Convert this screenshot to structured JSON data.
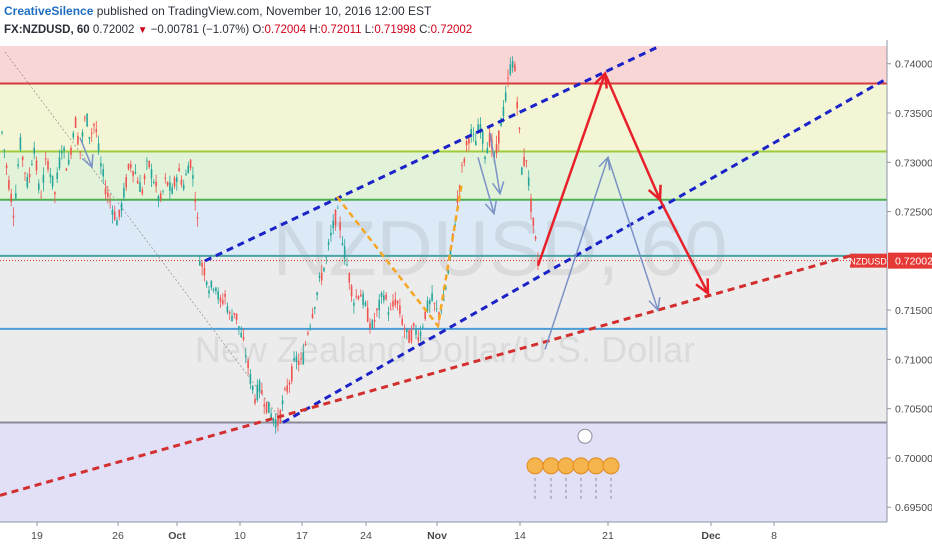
{
  "header": {
    "author": "CreativeSilence",
    "published_text": "published on TradingView.com, November 10, 2016 12:00 EST",
    "symbol": "FX:NZDUSD, 60",
    "last": "0.72002",
    "change": "−0.00781 (−1.07%)",
    "o_label": "O:",
    "o_value": "0.72004",
    "h_label": "H:",
    "h_value": "0.72011",
    "l_label": "L:",
    "l_value": "0.71998",
    "c_label": "C:",
    "c_value": "0.72002"
  },
  "watermark": {
    "symbol": "NZDUSD, 60",
    "name": "New Zealand Dollar/U.S. Dollar"
  },
  "price_tag": {
    "label": "NZDUSD",
    "value": "0.72002"
  },
  "colors": {
    "up": "#26a69a",
    "down": "#ef5350",
    "zone_red": "#f9d6d6",
    "zone_yellow": "#f3f5d4",
    "zone_green": "#e3f3d9",
    "zone_blue": "#dceaf7",
    "zone_grey": "#ececec",
    "zone_purple": "#e1e0f7",
    "line_red": "#d33a3a",
    "line_lime": "#9ccc3c",
    "line_green": "#4caf50",
    "line_teal": "#4aa3a3",
    "line_blue": "#4a9dd6",
    "line_grey": "#8a8a9a",
    "channel_blue": "#1a22c8",
    "trend_red": "#d32f2f",
    "fib_orange": "#f5a623",
    "proj_red": "#e8202a",
    "proj_steel": "#7b93c6"
  },
  "chart_data": {
    "type": "candlestick",
    "title": "",
    "xlabel": "",
    "ylabel": "",
    "ylim": [
      0.6935,
      0.7418
    ],
    "y_ticks": [
      "0.74000",
      "0.73500",
      "0.73000",
      "0.72500",
      "0.72000",
      "0.71500",
      "0.71000",
      "0.70500",
      "0.70000",
      "0.69500"
    ],
    "x_ticks": [
      "19",
      "26",
      "Oct",
      "10",
      "17",
      "24",
      "Nov",
      "14",
      "21",
      "Dec",
      "8"
    ],
    "last_price": 0.72002,
    "horizontal_levels": [
      0.738,
      0.7311,
      0.7262,
      0.7205,
      0.7131,
      0.7036
    ],
    "price_path": [
      [
        0,
        0.7345
      ],
      [
        8,
        0.7285
      ],
      [
        14,
        0.7248
      ],
      [
        20,
        0.732
      ],
      [
        28,
        0.7275
      ],
      [
        34,
        0.7318
      ],
      [
        40,
        0.7262
      ],
      [
        47,
        0.7305
      ],
      [
        55,
        0.7268
      ],
      [
        62,
        0.7318
      ],
      [
        68,
        0.7292
      ],
      [
        75,
        0.7345
      ],
      [
        80,
        0.731
      ],
      [
        86,
        0.735
      ],
      [
        90,
        0.7325
      ],
      [
        95,
        0.7342
      ],
      [
        100,
        0.73
      ],
      [
        106,
        0.7272
      ],
      [
        112,
        0.7255
      ],
      [
        118,
        0.7238
      ],
      [
        124,
        0.7268
      ],
      [
        130,
        0.73
      ],
      [
        136,
        0.7288
      ],
      [
        142,
        0.727
      ],
      [
        148,
        0.73
      ],
      [
        154,
        0.7282
      ],
      [
        160,
        0.7258
      ],
      [
        166,
        0.7282
      ],
      [
        172,
        0.7268
      ],
      [
        178,
        0.7292
      ],
      [
        184,
        0.7276
      ],
      [
        190,
        0.7305
      ],
      [
        196,
        0.7262
      ],
      [
        200,
        0.72
      ],
      [
        205,
        0.719
      ],
      [
        210,
        0.717
      ],
      [
        215,
        0.718
      ],
      [
        220,
        0.7155
      ],
      [
        225,
        0.7165
      ],
      [
        230,
        0.7142
      ],
      [
        235,
        0.715
      ],
      [
        240,
        0.7128
      ],
      [
        245,
        0.711
      ],
      [
        250,
        0.7082
      ],
      [
        255,
        0.7062
      ],
      [
        260,
        0.7072
      ],
      [
        266,
        0.7055
      ],
      [
        272,
        0.7042
      ],
      [
        278,
        0.7036
      ],
      [
        284,
        0.706
      ],
      [
        290,
        0.708
      ],
      [
        296,
        0.71
      ],
      [
        302,
        0.7095
      ],
      [
        308,
        0.713
      ],
      [
        314,
        0.7155
      ],
      [
        320,
        0.718
      ],
      [
        326,
        0.72
      ],
      [
        332,
        0.723
      ],
      [
        337,
        0.725
      ],
      [
        342,
        0.7225
      ],
      [
        348,
        0.719
      ],
      [
        354,
        0.716
      ],
      [
        360,
        0.717
      ],
      [
        366,
        0.715
      ],
      [
        372,
        0.7132
      ],
      [
        378,
        0.715
      ],
      [
        384,
        0.7168
      ],
      [
        390,
        0.7145
      ],
      [
        396,
        0.7162
      ],
      [
        402,
        0.714
      ],
      [
        408,
        0.712
      ],
      [
        414,
        0.713
      ],
      [
        420,
        0.7125
      ],
      [
        426,
        0.715
      ],
      [
        432,
        0.716
      ],
      [
        438,
        0.7145
      ],
      [
        444,
        0.716
      ],
      [
        450,
        0.72
      ],
      [
        455,
        0.724
      ],
      [
        460,
        0.728
      ],
      [
        465,
        0.7308
      ],
      [
        470,
        0.7332
      ],
      [
        475,
        0.7318
      ],
      [
        480,
        0.734
      ],
      [
        485,
        0.731
      ],
      [
        490,
        0.7325
      ],
      [
        495,
        0.73
      ],
      [
        500,
        0.7335
      ],
      [
        505,
        0.736
      ],
      [
        510,
        0.7395
      ],
      [
        514,
        0.7405
      ],
      [
        518,
        0.7352
      ],
      [
        522,
        0.729
      ],
      [
        526,
        0.731
      ],
      [
        530,
        0.7265
      ],
      [
        534,
        0.723
      ],
      [
        538,
        0.72
      ]
    ],
    "channel_upper": [
      [
        205,
        0.72
      ],
      [
        660,
        0.7418
      ]
    ],
    "channel_lower": [
      [
        283,
        0.7036
      ],
      [
        887,
        0.7385
      ]
    ],
    "trend_support": [
      [
        0,
        0.6962
      ],
      [
        850,
        0.7205
      ]
    ],
    "fib_swing": [
      [
        337,
        0.7265
      ],
      [
        438,
        0.7134
      ],
      [
        462,
        0.728
      ]
    ],
    "projection_bullish": [
      [
        538,
        0.7195
      ],
      [
        605,
        0.739
      ],
      [
        660,
        0.7262
      ],
      [
        708,
        0.7167
      ]
    ],
    "projection_alt": [
      [
        545,
        0.711
      ],
      [
        608,
        0.7305
      ],
      [
        658,
        0.715
      ]
    ],
    "small_arrows": [
      [
        [
          80,
          0.7325
        ],
        [
          92,
          0.7295
        ]
      ],
      [
        [
          478,
          0.7305
        ],
        [
          494,
          0.7248
        ]
      ],
      [
        [
          490,
          0.733
        ],
        [
          500,
          0.7268
        ]
      ]
    ]
  }
}
